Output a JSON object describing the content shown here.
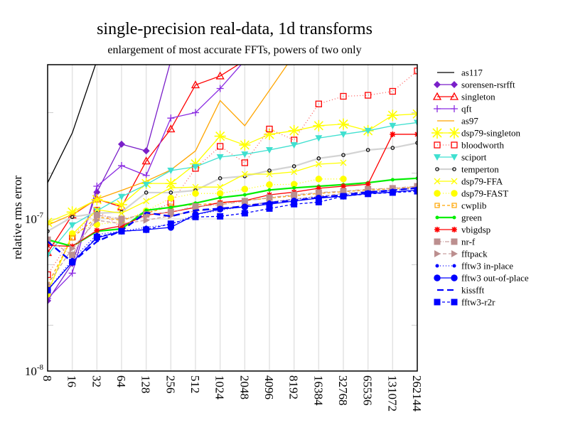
{
  "chart_data": {
    "type": "line",
    "title": "single-precision real-data, 1d transforms",
    "subtitle": "enlargement of most accurate FFTs, powers of two only",
    "xlabel": "",
    "ylabel": "relative rms error",
    "xscale": "log2",
    "yscale": "log10",
    "ylim": [
      1e-08,
      1.03e-06
    ],
    "grid": true,
    "legend_position": "right",
    "x": [
      8,
      16,
      32,
      64,
      128,
      256,
      512,
      1024,
      2048,
      4096,
      8192,
      16384,
      32768,
      65536,
      131072,
      262144
    ],
    "x_tick_labels": [
      "8",
      "16",
      "32",
      "64",
      "128",
      "256",
      "512",
      "1024",
      "2048",
      "4096",
      "8192",
      "16384",
      "32768",
      "65536",
      "131072",
      "262144"
    ],
    "y_tick_labels": [
      {
        "base": "10",
        "exp": "-7",
        "value": 1e-07
      },
      {
        "base": "10",
        "exp": "-8",
        "value": 1e-08
      }
    ],
    "series": [
      {
        "name": "as117",
        "color": "#000000",
        "dash": "",
        "marker": "none",
        "values": [
          1.73e-07,
          3.67e-07,
          1.1e-06
        ]
      },
      {
        "name": "sorensen-rsrfft",
        "color": "#7a1fc9",
        "dash": "",
        "marker": "diamond",
        "values": [
          2.9e-08,
          5.1e-08,
          1.5e-07,
          3.1e-07,
          2.8e-07,
          1.1e-06
        ]
      },
      {
        "name": "singleton",
        "color": "#ff0000",
        "dash": "",
        "marker": "triangle",
        "values": [
          6e-08,
          1.06e-07,
          1.35e-07,
          1.2e-07,
          2.4e-07,
          3.9e-07,
          7.6e-07,
          8.7e-07,
          1.1e-06
        ]
      },
      {
        "name": "qft",
        "color": "#8a2be2",
        "dash": "",
        "marker": "plus",
        "values": [
          3e-08,
          4.4e-08,
          1.64e-07,
          2.24e-07,
          1.93e-07,
          4.6e-07,
          5e-07,
          7.2e-07,
          1.1e-06
        ]
      },
      {
        "name": "as97",
        "color": "#ffa500",
        "dash": "",
        "marker": "none",
        "values": [
          9.1e-08,
          1.07e-07,
          1.35e-07,
          1.54e-07,
          1.77e-07,
          2.1e-07,
          2.8e-07,
          6e-07,
          4.1e-07,
          7e-07,
          1.2e-06
        ]
      },
      {
        "name": "dsp79-singleton",
        "color": "#ffff00",
        "dash": "",
        "marker": "star",
        "values": [
          9.5e-08,
          1.11e-07,
          1.34e-07,
          1.24e-07,
          1.71e-07,
          1.71e-07,
          2.3e-07,
          3.5e-07,
          3.06e-07,
          3.6e-07,
          3.8e-07,
          4.1e-07,
          4.2e-07,
          3.8e-07,
          4.8e-07,
          4.9e-07
        ]
      },
      {
        "name": "bloodworth",
        "color": "#ff0000",
        "dash": "1,3",
        "marker": "square",
        "values": [
          4.3e-08,
          7.6e-08,
          1.14e-07,
          8.8e-08,
          1.09e-07,
          1.27e-07,
          2.15e-07,
          3e-07,
          2.34e-07,
          3.9e-07,
          3.3e-07,
          5.7e-07,
          6.4e-07,
          6.5e-07,
          6.9e-07,
          9.4e-07
        ]
      },
      {
        "name": "sciport",
        "color": "#40e0d0",
        "dash": "",
        "marker": "triangle-down",
        "values": [
          5.8e-08,
          9.1e-08,
          1.13e-07,
          1.4e-07,
          1.68e-07,
          2.08e-07,
          2.2e-07,
          2.55e-07,
          2.66e-07,
          2.84e-07,
          3.06e-07,
          3.4e-07,
          3.6e-07,
          3.8e-07,
          4.1e-07,
          4.3e-07
        ]
      },
      {
        "name": "temperton",
        "color": "#d3d3d3",
        "dash": "",
        "marker": "circle-open",
        "values": [
          8.3e-08,
          1.03e-07,
          1.09e-07,
          1.11e-07,
          1.49e-07,
          1.49e-07,
          1.54e-07,
          1.85e-07,
          1.91e-07,
          2.08e-07,
          2.22e-07,
          2.5e-07,
          2.63e-07,
          2.84e-07,
          2.93e-07,
          3.16e-07
        ]
      },
      {
        "name": "dsp79-FFA",
        "color": "#ffff00",
        "dash": "",
        "marker": "x",
        "values": [
          3.3e-08,
          7.9e-08,
          1.15e-07,
          1.09e-07,
          1.31e-07,
          1.6e-07,
          1.62e-07,
          1.62e-07,
          1.97e-07,
          1.97e-07,
          2.04e-07,
          2.29e-07,
          2.34e-07
        ]
      },
      {
        "name": "dsp79-FAST",
        "color": "#ffff00",
        "dash": "1,3",
        "marker": "circle-big",
        "values": [
          3.2e-08,
          8e-08,
          9.2e-08,
          9.6e-08,
          1.13e-07,
          1.37e-07,
          1.47e-07,
          1.47e-07,
          1.57e-07,
          1.68e-07,
          1.69e-07,
          1.83e-07,
          1.83e-07
        ]
      },
      {
        "name": "cwplib",
        "color": "#ffa500",
        "dash": "4,3",
        "marker": "square-small",
        "values": [
          3.7e-08,
          7.5e-08,
          1.03e-07,
          9.8e-08,
          1.09e-07,
          1.21e-07,
          1.24e-07,
          1.27e-07,
          1.32e-07,
          1.37e-07,
          1.42e-07,
          1.47e-07,
          1.51e-07,
          1.55e-07,
          1.58e-07,
          1.62e-07
        ]
      },
      {
        "name": "green",
        "color": "#00ee00",
        "dash": "",
        "marker": "dot",
        "values": [
          7.3e-08,
          6.6e-08,
          8.3e-08,
          8.6e-08,
          1.14e-07,
          1.19e-07,
          1.27e-07,
          1.38e-07,
          1.44e-07,
          1.55e-07,
          1.6e-07,
          1.64e-07,
          1.68e-07,
          1.73e-07,
          1.81e-07,
          1.85e-07
        ]
      },
      {
        "name": "vbigdsp",
        "color": "#ff0000",
        "dash": "",
        "marker": "asterisk",
        "values": [
          6.7e-08,
          6.6e-08,
          8.4e-08,
          9e-08,
          1.06e-07,
          1.11e-07,
          1.19e-07,
          1.28e-07,
          1.32e-07,
          1.44e-07,
          1.5e-07,
          1.59e-07,
          1.64e-07,
          1.69e-07,
          3.6e-07,
          3.6e-07
        ]
      },
      {
        "name": "nr-f",
        "color": "#bc8f8f",
        "dash": "6,2,1,2",
        "marker": "square-filled",
        "values": [
          7.3e-08,
          5.8e-08,
          1.06e-07,
          1e-07,
          1.07e-07,
          1.11e-07,
          1.21e-07,
          1.24e-07,
          1.31e-07,
          1.38e-07,
          1.44e-07,
          1.49e-07,
          1.52e-07,
          1.57e-07,
          1.59e-07,
          1.64e-07
        ]
      },
      {
        "name": "fftpack",
        "color": "#bc8f8f",
        "dash": "5,3",
        "marker": "triangle-right",
        "values": [
          3.7e-08,
          6.4e-08,
          9.8e-08,
          9.3e-08,
          9.8e-08,
          1.05e-07,
          1.13e-07,
          1.16e-07,
          1.23e-07,
          1.29e-07,
          1.35e-07,
          1.41e-07,
          1.47e-07,
          1.52e-07,
          1.55e-07,
          1.6e-07
        ]
      },
      {
        "name": "fftw3 in-place",
        "color": "#0000ff",
        "dash": "1,3",
        "marker": "dot",
        "values": [
          3.4e-08,
          5.4e-08,
          7.9e-08,
          8.3e-08,
          8.8e-08,
          9.2e-08,
          1.07e-07,
          1.14e-07,
          1.21e-07,
          1.29e-07,
          1.34e-07,
          1.4e-07,
          1.44e-07,
          1.49e-07,
          1.54e-07,
          1.59e-07
        ]
      },
      {
        "name": "fftw3 out-of-place",
        "color": "#0000ff",
        "dash": "",
        "marker": "circle-big",
        "values": [
          3.4e-08,
          5.2e-08,
          7.5e-08,
          8.3e-08,
          8.5e-08,
          8.8e-08,
          1.07e-07,
          1.16e-07,
          1.2e-07,
          1.25e-07,
          1.31e-07,
          1.37e-07,
          1.41e-07,
          1.47e-07,
          1.5e-07,
          1.55e-07
        ]
      },
      {
        "name": "kissfft",
        "color": "#0000ff",
        "dash": "9,5",
        "marker": "none",
        "values": [
          7.1e-08,
          5.2e-08,
          7.1e-08,
          8.4e-08,
          1.1e-07,
          1.04e-07,
          1.14e-07,
          1.17e-07,
          1.21e-07,
          1.28e-07,
          1.32e-07,
          1.38e-07,
          1.44e-07,
          1.5e-07,
          1.54e-07,
          1.6e-07
        ]
      },
      {
        "name": "fftw3-r2r",
        "color": "#0000ff",
        "dash": "4,3",
        "marker": "square-filled",
        "values": [
          3.4e-08,
          5.2e-08,
          7.6e-08,
          8.3e-08,
          8.5e-08,
          9.3e-08,
          1.03e-07,
          1.04e-07,
          1.09e-07,
          1.17e-07,
          1.25e-07,
          1.29e-07,
          1.41e-07,
          1.46e-07,
          1.49e-07,
          1.52e-07
        ]
      }
    ]
  }
}
